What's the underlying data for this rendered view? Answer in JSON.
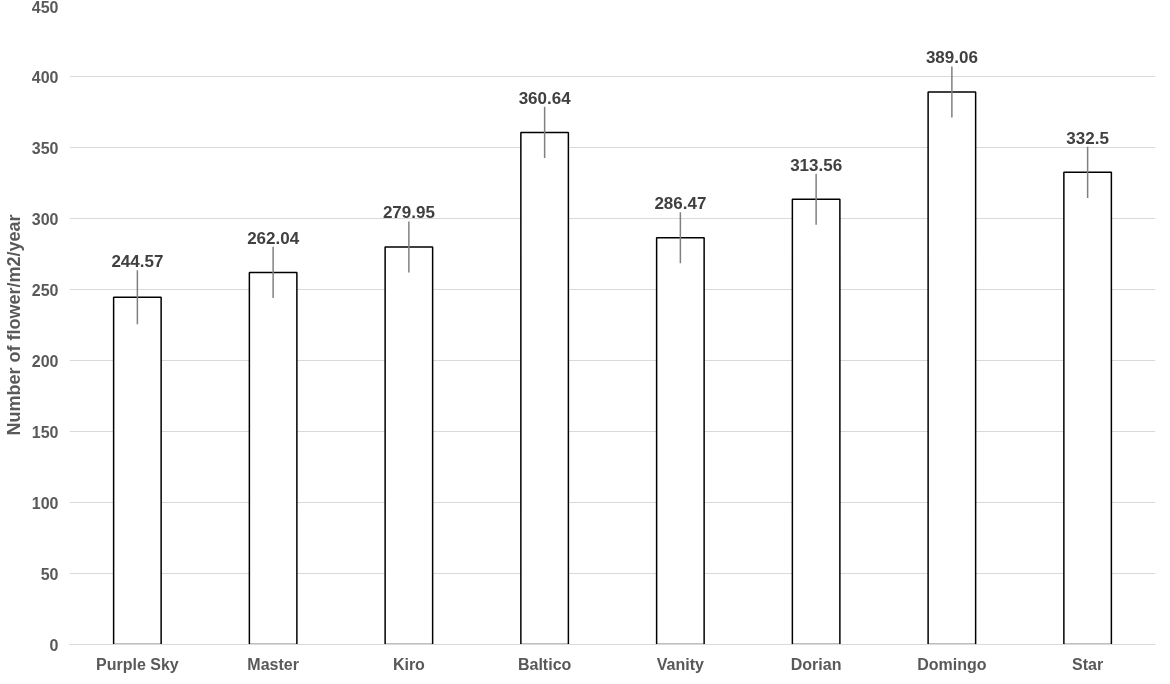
{
  "chart_data": {
    "type": "bar",
    "ylabel": "Number of flower/m2/year",
    "categories": [
      "Purple Sky",
      "Master",
      "Kiro",
      "Baltico",
      "Vanity",
      "Dorian",
      "Domingo",
      "Star"
    ],
    "values": [
      244.57,
      262.04,
      279.95,
      360.64,
      286.47,
      313.56,
      389.06,
      332.5
    ],
    "errors": [
      19,
      18,
      18,
      18,
      18,
      18,
      18,
      18
    ],
    "color": "#000000",
    "ylim": [
      0,
      450
    ],
    "yticks": [
      0,
      50,
      100,
      150,
      200,
      250,
      300,
      350,
      400,
      450
    ],
    "grid": "y",
    "data_labels": true
  }
}
